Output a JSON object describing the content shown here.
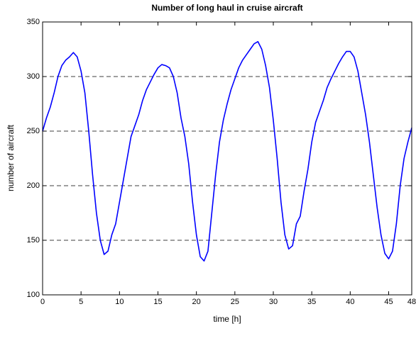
{
  "chart_data": {
    "type": "line",
    "title": "Number of long haul in cruise aircraft",
    "xlabel": "time [h]",
    "ylabel": "number of aircraft",
    "x": [
      0,
      0.5,
      1,
      1.5,
      2,
      2.5,
      3,
      3.5,
      4,
      4.5,
      5,
      5.5,
      6,
      6.5,
      7,
      7.5,
      8,
      8.5,
      9,
      9.5,
      10,
      10.5,
      11,
      11.5,
      12,
      12.5,
      13,
      13.5,
      14,
      14.5,
      15,
      15.5,
      16,
      16.5,
      17,
      17.5,
      18,
      18.5,
      19,
      19.5,
      20,
      20.5,
      21,
      21.5,
      22,
      22.5,
      23,
      23.5,
      24,
      24.5,
      25,
      25.5,
      26,
      26.5,
      27,
      27.5,
      28,
      28.5,
      29,
      29.5,
      30,
      30.5,
      31,
      31.5,
      32,
      32.5,
      33,
      33.5,
      34,
      34.5,
      35,
      35.5,
      36,
      36.5,
      37,
      37.5,
      38,
      38.5,
      39,
      39.5,
      40,
      40.5,
      41,
      41.5,
      42,
      42.5,
      43,
      43.5,
      44,
      44.5,
      45,
      45.5,
      46,
      46.5,
      47,
      47.5,
      48
    ],
    "series": [
      {
        "name": "long haul",
        "color": "#0000ff",
        "values": [
          250,
          262,
          272,
          285,
          300,
          310,
          315,
          318,
          322,
          318,
          305,
          285,
          250,
          210,
          175,
          150,
          137,
          140,
          155,
          165,
          185,
          205,
          225,
          245,
          255,
          265,
          278,
          288,
          295,
          302,
          308,
          311,
          310,
          308,
          300,
          285,
          262,
          245,
          220,
          185,
          155,
          135,
          131,
          140,
          175,
          210,
          240,
          260,
          275,
          288,
          298,
          308,
          315,
          320,
          325,
          330,
          332,
          325,
          310,
          290,
          260,
          225,
          185,
          155,
          142,
          145,
          165,
          172,
          195,
          215,
          240,
          258,
          268,
          278,
          290,
          298,
          305,
          312,
          318,
          323,
          323,
          318,
          305,
          285,
          265,
          240,
          210,
          180,
          155,
          138,
          133,
          140,
          165,
          200,
          225,
          240,
          253
        ]
      }
    ],
    "xlim": [
      0,
      48
    ],
    "ylim": [
      100,
      350
    ],
    "xticks": [
      0,
      5,
      10,
      15,
      20,
      25,
      30,
      35,
      40,
      45,
      48
    ],
    "yticks": [
      100,
      150,
      200,
      250,
      300,
      350
    ],
    "grid": true
  }
}
